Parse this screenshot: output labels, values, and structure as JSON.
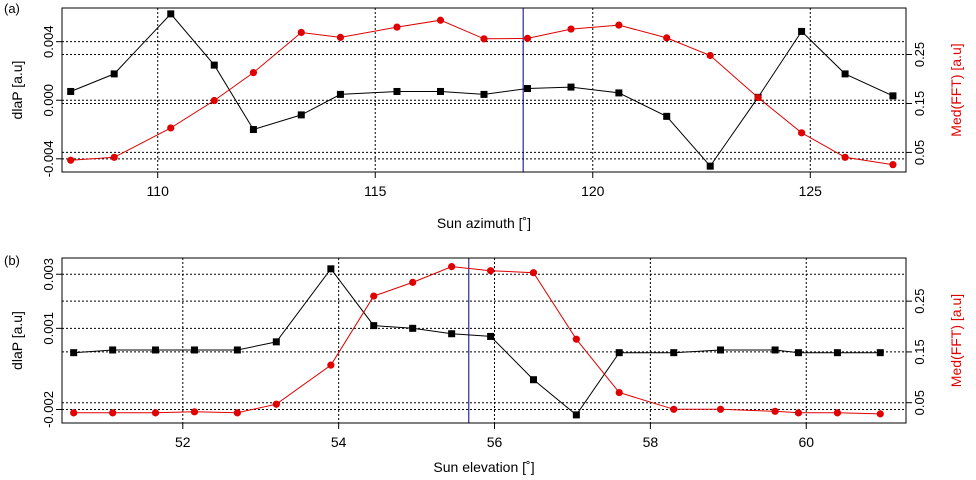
{
  "chart_data": [
    {
      "type": "line",
      "panel_label": "(a)",
      "xlabel": "Sun azimuth [˚]",
      "ylabel_left": "dlaP [a.u]",
      "ylabel_right": "Med(FFT) [a.u]",
      "xlim": [
        107.8,
        127.2
      ],
      "ylim_left": [
        -0.0049,
        0.0063
      ],
      "ylim_right": [
        0.01,
        0.345
      ],
      "x_ticks": [
        110,
        115,
        120,
        125
      ],
      "y_ticks_left": [
        -0.004,
        0.0,
        0.004
      ],
      "y_ticks_left_labels": [
        "-0.004",
        "0.000",
        "0.004"
      ],
      "y_ticks_right": [
        0.05,
        0.15,
        0.25
      ],
      "y_ticks_right_labels": [
        "0.05",
        "0.15",
        "0.25"
      ],
      "grid": true,
      "vline_x": 118.4,
      "colors": {
        "left": "#000000",
        "right": "#e00000",
        "vline": "#00008b",
        "grid": "#000000"
      },
      "series": [
        {
          "axis": "left",
          "marker": "square",
          "x": [
            108.0,
            109.0,
            110.3,
            111.3,
            112.2,
            113.3,
            114.2,
            115.5,
            116.5,
            117.5,
            118.5,
            119.5,
            120.6,
            121.7,
            122.7,
            123.8,
            124.8,
            125.8,
            126.9
          ],
          "values": [
            0.0006,
            0.0018,
            0.0059,
            0.0024,
            -0.002,
            -0.001,
            0.0004,
            0.0006,
            0.0006,
            0.0004,
            0.0008,
            0.0009,
            0.0005,
            -0.0011,
            -0.0045,
            0.0002,
            0.0047,
            0.0018,
            0.0003
          ]
        },
        {
          "axis": "right",
          "marker": "circle",
          "x": [
            108.0,
            109.0,
            110.3,
            111.3,
            112.2,
            113.3,
            114.2,
            115.5,
            116.5,
            117.5,
            118.5,
            119.5,
            120.6,
            121.7,
            122.7,
            123.8,
            124.8,
            125.8,
            126.9
          ],
          "values": [
            0.034,
            0.04,
            0.1,
            0.156,
            0.213,
            0.295,
            0.285,
            0.306,
            0.32,
            0.282,
            0.283,
            0.302,
            0.31,
            0.284,
            0.248,
            0.162,
            0.09,
            0.04,
            0.025
          ]
        }
      ]
    },
    {
      "type": "line",
      "panel_label": "(b)",
      "xlabel": "Sun elevation [˚]",
      "ylabel_left": "dlaP [a.u]",
      "ylabel_right": "Med(FFT) [a.u]",
      "xlim": [
        50.45,
        61.28
      ],
      "ylim_left": [
        -0.0025,
        0.0036
      ],
      "ylim_right": [
        0.01,
        0.335
      ],
      "x_ticks": [
        52,
        54,
        56,
        58,
        60
      ],
      "y_ticks_left": [
        -0.002,
        0.001,
        0.003
      ],
      "y_ticks_left_labels": [
        "-0.002",
        "0.001",
        "0.003"
      ],
      "y_ticks_right": [
        0.05,
        0.15,
        0.25
      ],
      "y_ticks_right_labels": [
        "0.05",
        "0.15",
        "0.25"
      ],
      "grid": true,
      "vline_x": 55.67,
      "colors": {
        "left": "#000000",
        "right": "#e00000",
        "vline": "#00008b",
        "grid": "#000000"
      },
      "series": [
        {
          "axis": "left",
          "marker": "square",
          "x": [
            50.6,
            51.1,
            51.65,
            52.15,
            52.7,
            53.2,
            53.9,
            54.45,
            54.95,
            55.45,
            55.95,
            56.5,
            57.05,
            57.6,
            58.3,
            58.9,
            59.6,
            59.9,
            60.4,
            60.95
          ],
          "values": [
            0.0001,
            0.0002,
            0.0002,
            0.0002,
            0.0002,
            0.0005,
            0.0032,
            0.0011,
            0.001,
            0.0008,
            0.0007,
            -0.0009,
            -0.0022,
            0.0001,
            0.0001,
            0.0002,
            0.0002,
            0.0001,
            0.0001,
            0.0001
          ]
        },
        {
          "axis": "right",
          "marker": "circle",
          "x": [
            50.6,
            51.1,
            51.65,
            52.15,
            52.7,
            53.2,
            53.9,
            54.45,
            54.95,
            55.45,
            55.95,
            56.5,
            57.05,
            57.6,
            58.3,
            58.9,
            59.6,
            59.9,
            60.4,
            60.95
          ],
          "values": [
            0.03,
            0.03,
            0.03,
            0.032,
            0.03,
            0.047,
            0.124,
            0.26,
            0.287,
            0.318,
            0.31,
            0.306,
            0.175,
            0.07,
            0.037,
            0.037,
            0.033,
            0.03,
            0.03,
            0.028
          ]
        }
      ]
    }
  ]
}
